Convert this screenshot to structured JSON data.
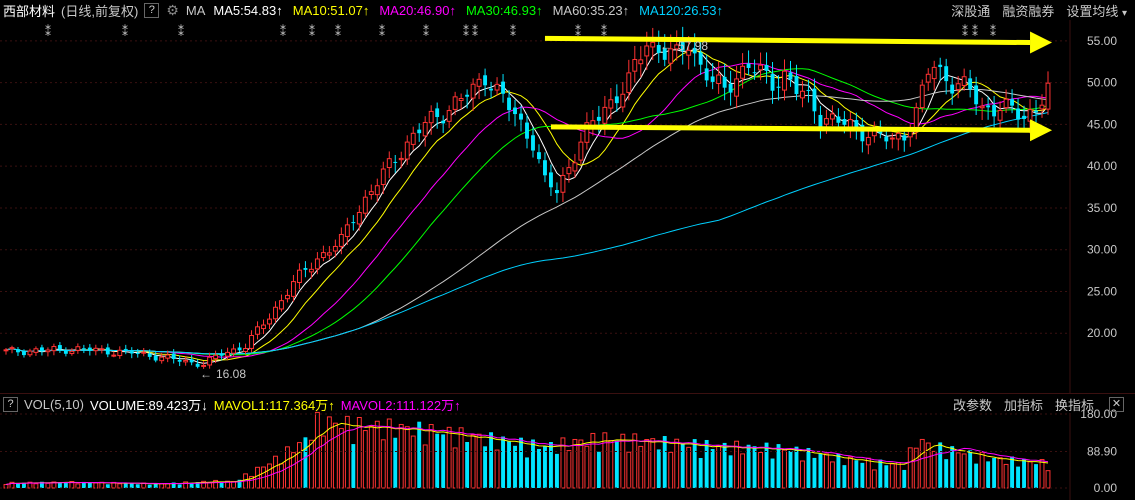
{
  "header": {
    "stock_name": "西部材料",
    "mode": "(日线,前复权)",
    "help_label": "?",
    "gear_label": "⚙",
    "ma_label": "MA",
    "indicators": [
      {
        "text": "MA5:54.83",
        "arrow": "↑",
        "color": "#ffffff"
      },
      {
        "text": "MA10:51.07",
        "arrow": "↑",
        "color": "#ffff00"
      },
      {
        "text": "MA20:46.90",
        "arrow": "↑",
        "color": "#ff00ff"
      },
      {
        "text": "MA30:46.93",
        "arrow": "↑",
        "color": "#00ff00"
      },
      {
        "text": "MA60:35.23",
        "arrow": "↑",
        "color": "#c8c8c8"
      },
      {
        "text": "MA120:26.53",
        "arrow": "↑",
        "color": "#00d0ff"
      }
    ],
    "tools": [
      "深股通",
      "融资融券",
      "设置均线"
    ],
    "tools_arrow": "▾"
  },
  "volume_header": {
    "toggle": "?",
    "label": "VOL(5,10)",
    "volume": "VOLUME:89.423万",
    "volume_arrow": "↓",
    "mavol1": "MAVOL1:117.364万",
    "mavol1_arrow": "↑",
    "mavol2": "MAVOL2:111.122万",
    "mavol2_arrow": "↑",
    "tools": [
      "改参数",
      "加指标",
      "换指标"
    ],
    "close_label": "✕"
  },
  "annotations": {
    "high_label": "57.98",
    "low_label": "16.08"
  },
  "chart_data": {
    "type": "candlestick",
    "price_axis": {
      "min": 15,
      "max": 57.5,
      "ticks": [
        "55.00",
        "50.00",
        "45.00",
        "40.00",
        "35.00",
        "30.00",
        "25.00",
        "20.00"
      ]
    },
    "volume_axis": {
      "max": 180,
      "ticks": [
        "180.00",
        "88.90",
        "0.00"
      ]
    },
    "colors": {
      "up": "#ff3232",
      "down": "#00e5ff",
      "ma5": "#ffffff",
      "ma10": "#ffff00",
      "ma20": "#ff00ff",
      "ma30": "#00ff00",
      "ma60": "#c8c8c8",
      "ma120": "#00d0ff",
      "trend": "#ffff00"
    },
    "anchors": [
      [
        0,
        17.8
      ],
      [
        12,
        18.1
      ],
      [
        22,
        17.6
      ],
      [
        30,
        16.6
      ],
      [
        33,
        16.3
      ],
      [
        36,
        17.5
      ],
      [
        40,
        18.5
      ],
      [
        44,
        22
      ],
      [
        48,
        26
      ],
      [
        52,
        29
      ],
      [
        56,
        31
      ],
      [
        58,
        34
      ],
      [
        62,
        38
      ],
      [
        66,
        42
      ],
      [
        70,
        45
      ],
      [
        74,
        47
      ],
      [
        78,
        49
      ],
      [
        80,
        51
      ],
      [
        84,
        47
      ],
      [
        88,
        43
      ],
      [
        90,
        38
      ],
      [
        92,
        37
      ],
      [
        94,
        40
      ],
      [
        96,
        43
      ],
      [
        100,
        47
      ],
      [
        104,
        50
      ],
      [
        107,
        55
      ],
      [
        109,
        54
      ],
      [
        112,
        53
      ],
      [
        114,
        55
      ],
      [
        116,
        52
      ],
      [
        118,
        50
      ],
      [
        120,
        49
      ],
      [
        122,
        51
      ],
      [
        124,
        52
      ],
      [
        126,
        51
      ],
      [
        128,
        50
      ],
      [
        130,
        51
      ],
      [
        132,
        49
      ],
      [
        134,
        48
      ],
      [
        136,
        46
      ],
      [
        140,
        45
      ],
      [
        144,
        44
      ],
      [
        148,
        43
      ],
      [
        150,
        44
      ],
      [
        152,
        47
      ],
      [
        155,
        52
      ],
      [
        158,
        50
      ],
      [
        161,
        49
      ],
      [
        163,
        47
      ],
      [
        166,
        47
      ],
      [
        170,
        46
      ],
      [
        172,
        47
      ],
      [
        174,
        49
      ]
    ],
    "special_candles": [
      {
        "index": 152,
        "close": 47
      },
      {
        "index": 154,
        "close": 51
      }
    ],
    "trend_lines": [
      {
        "from": [
          90,
          55.3
        ],
        "to": [
          171,
          54.8
        ]
      },
      {
        "from": [
          91,
          44.7
        ],
        "to": [
          171,
          44.3
        ]
      }
    ],
    "volume_anchors": [
      [
        0,
        12
      ],
      [
        10,
        14
      ],
      [
        25,
        10
      ],
      [
        35,
        16
      ],
      [
        38,
        15
      ],
      [
        44,
        60
      ],
      [
        50,
        115
      ],
      [
        52,
        160
      ],
      [
        60,
        150
      ],
      [
        70,
        140
      ],
      [
        80,
        120
      ],
      [
        90,
        100
      ],
      [
        100,
        120
      ],
      [
        110,
        110
      ],
      [
        120,
        100
      ],
      [
        130,
        95
      ],
      [
        140,
        70
      ],
      [
        150,
        55
      ],
      [
        152,
        115
      ],
      [
        155,
        100
      ],
      [
        165,
        70
      ],
      [
        174,
        60
      ]
    ]
  }
}
